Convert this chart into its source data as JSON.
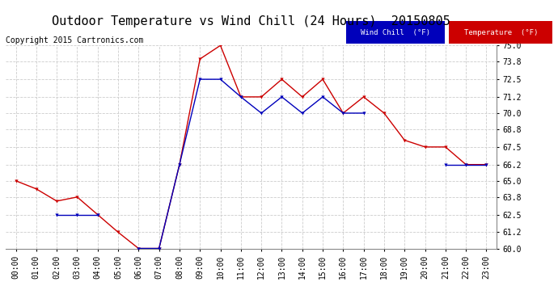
{
  "title": "Outdoor Temperature vs Wind Chill (24 Hours)  20150805",
  "copyright": "Copyright 2015 Cartronics.com",
  "hours": [
    "00:00",
    "01:00",
    "02:00",
    "03:00",
    "04:00",
    "05:00",
    "06:00",
    "07:00",
    "08:00",
    "09:00",
    "10:00",
    "11:00",
    "12:00",
    "13:00",
    "14:00",
    "15:00",
    "16:00",
    "17:00",
    "18:00",
    "19:00",
    "20:00",
    "21:00",
    "22:00",
    "23:00"
  ],
  "temperature": [
    65.0,
    64.4,
    63.5,
    63.8,
    62.5,
    61.2,
    60.0,
    60.0,
    66.2,
    74.0,
    75.0,
    71.2,
    71.2,
    72.5,
    71.2,
    72.5,
    70.0,
    71.2,
    70.0,
    68.0,
    67.5,
    67.5,
    66.2,
    66.2
  ],
  "wind_chill": [
    null,
    null,
    62.5,
    62.5,
    62.5,
    null,
    60.0,
    60.0,
    66.2,
    72.5,
    72.5,
    71.2,
    70.0,
    71.2,
    70.0,
    71.2,
    70.0,
    70.0,
    null,
    null,
    null,
    66.2,
    66.2,
    66.2
  ],
  "ylim": [
    60.0,
    75.0
  ],
  "yticks": [
    60.0,
    61.2,
    62.5,
    63.8,
    65.0,
    66.2,
    67.5,
    68.8,
    70.0,
    71.2,
    72.5,
    73.8,
    75.0
  ],
  "temp_color": "#cc0000",
  "wind_color": "#0000bb",
  "bg_color": "#ffffff",
  "grid_color": "#cccccc",
  "title_fontsize": 11,
  "copyright_fontsize": 7,
  "tick_fontsize": 7,
  "legend_wind_label": "Wind Chill  (°F)",
  "legend_temp_label": "Temperature  (°F)"
}
